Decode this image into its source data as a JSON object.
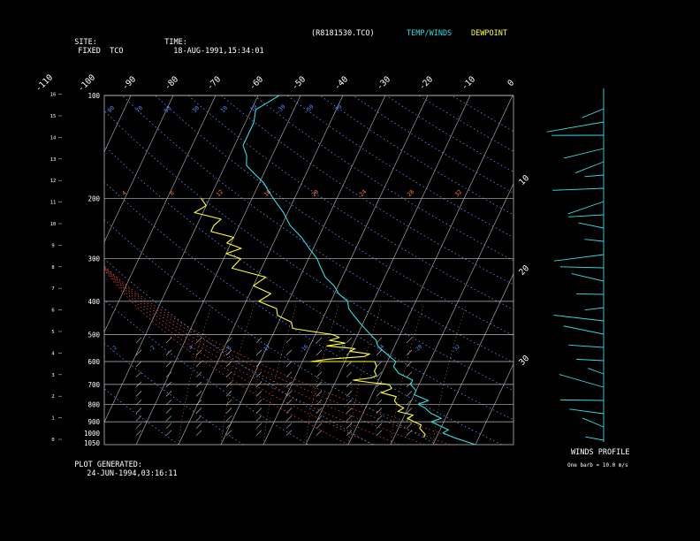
{
  "header": {
    "site_label": "SITE:",
    "site_value": "FIXED  TCO",
    "time_label": "TIME:",
    "time_value": "18-AUG-1991,15:34:01",
    "file": "(R8181530.TCO)",
    "legend_temp": "TEMP/WINDS",
    "legend_dew": "DEWPOINT"
  },
  "footer": {
    "generated_label": "PLOT GENERATED:",
    "generated_value": "24-JUN-1994,03:16:11"
  },
  "winds": {
    "title": "WINDS PROFILE",
    "note": "One barb = 10.0 m/s"
  },
  "colors": {
    "temp": "#33dddd",
    "dew": "#ffff33",
    "grid": "#bbbbbb",
    "dry": "#5a8cff",
    "mixing": "#ff7a3a",
    "moist": "#ff4a4a",
    "bg": "#000000"
  },
  "chart_data": {
    "type": "line",
    "pressure_ticks": [
      "100",
      "200",
      "300",
      "400",
      "500",
      "600",
      "700",
      "800",
      "900",
      "1000",
      "1050"
    ],
    "height_ticks": [
      "0",
      "1",
      "2",
      "3",
      "4",
      "5",
      "6",
      "7",
      "8",
      "9",
      "10",
      "11",
      "12",
      "13",
      "14",
      "15",
      "16"
    ],
    "temp_ticks": [
      "-110",
      "-100",
      "-90",
      "-80",
      "-70",
      "-60",
      "-50",
      "-40",
      "-30",
      "-20",
      "-10",
      "0",
      "10",
      "20",
      "30"
    ],
    "theta_labels": [
      "90",
      "70",
      "50",
      "30",
      "10",
      "-10",
      "-30",
      "-50",
      "-70"
    ],
    "mixing_labels": [
      "4",
      "8",
      "12",
      "16",
      "20",
      "24",
      "28",
      "32"
    ],
    "wetbulb_labels": [
      "-2",
      "-2",
      "-4",
      "-8",
      "-12",
      "-16",
      "-20",
      "-24",
      "-28",
      "-32"
    ],
    "ylim_hpa": [
      1050,
      100
    ],
    "series": [
      {
        "name": "TEMP/WINDS",
        "pressure": [
          1050,
          1000,
          970,
          950,
          920,
          900,
          880,
          850,
          820,
          800,
          780,
          750,
          730,
          700,
          680,
          650,
          620,
          600,
          580,
          560,
          540,
          520,
          500,
          480,
          460,
          440,
          420,
          400,
          380,
          360,
          340,
          320,
          300,
          280,
          260,
          240,
          220,
          200,
          190,
          180,
          170,
          160,
          150,
          140,
          130,
          120,
          110,
          105,
          100
        ],
        "temp": [
          30,
          24,
          21,
          22,
          19,
          17,
          19,
          16,
          14,
          12,
          14,
          10,
          10,
          8,
          8,
          4,
          2,
          2,
          0,
          -2,
          -4,
          -5,
          -7,
          -9,
          -11,
          -13,
          -15,
          -16,
          -19,
          -21,
          -24,
          -26,
          -28,
          -31,
          -34,
          -38,
          -41,
          -45,
          -47,
          -49,
          -52,
          -55,
          -56,
          -58,
          -58,
          -58,
          -59,
          -57,
          -55
        ]
      },
      {
        "name": "DEWPOINT",
        "pressure": [
          1000,
          980,
          960,
          940,
          920,
          900,
          880,
          860,
          840,
          820,
          800,
          780,
          760,
          740,
          720,
          700,
          690,
          680,
          670,
          660,
          640,
          620,
          600,
          600,
          590,
          580,
          570,
          560,
          550,
          540,
          530,
          520,
          510,
          500,
          490,
          480,
          460,
          440,
          420,
          400,
          380,
          360,
          340,
          320,
          300,
          290,
          280,
          270,
          260,
          250,
          240,
          230,
          220,
          210,
          200
        ],
        "dew": [
          17,
          17,
          16,
          15,
          15,
          13,
          11,
          12,
          8,
          9,
          7,
          6,
          6,
          2,
          4,
          3,
          -2,
          -6,
          -2,
          -1,
          -2,
          -2,
          -3,
          -18,
          -14,
          -6,
          -5,
          -10,
          -9,
          -16,
          -12,
          -16,
          -14,
          -16,
          -21,
          -26,
          -27,
          -31,
          -32,
          -37,
          -35,
          -40,
          -38,
          -47,
          -46,
          -50,
          -47,
          -51,
          -50,
          -56,
          -56,
          -55,
          -62,
          -60,
          -62
        ]
      }
    ],
    "wind_barb_count": 26
  }
}
